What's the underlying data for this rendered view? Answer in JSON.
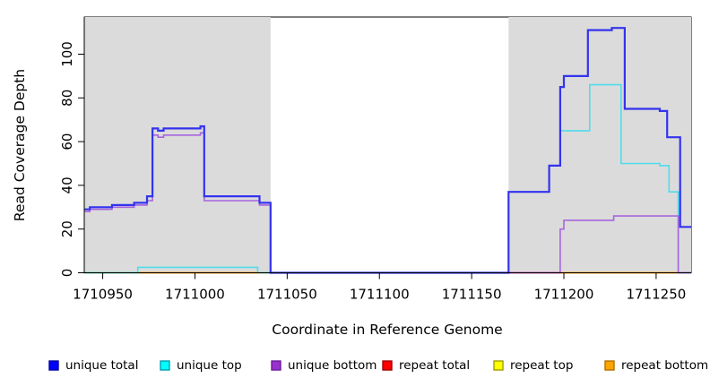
{
  "figure": {
    "background": "#ffffff",
    "panel_shade_color": "#dbdbdb"
  },
  "chart_data": {
    "type": "line",
    "subtype": "step-coverage-plot",
    "title": "",
    "xlabel": "Coordinate in Reference Genome",
    "ylabel": "Read Coverage Depth",
    "xlim": [
      1710940,
      1711269
    ],
    "ylim": [
      0,
      117
    ],
    "x_ticks": [
      1710950,
      1711000,
      1711050,
      1711100,
      1711150,
      1711200,
      1711250
    ],
    "y_ticks": [
      0,
      20,
      40,
      60,
      80,
      100
    ],
    "grid": false,
    "shaded_regions": [
      {
        "x0": 1710940,
        "x1": 1711041,
        "color": "#dbdbdb"
      },
      {
        "x0": 1711170,
        "x1": 1711269,
        "color": "#dbdbdb"
      }
    ],
    "series": [
      {
        "name": "repeat total",
        "line_color": "#de4b7c",
        "lw": 2,
        "segments": [
          [
            [
              1711170,
              0
            ],
            [
              1711269,
              0
            ]
          ]
        ]
      },
      {
        "name": "repeat top",
        "line_color": "#79c779",
        "lw": 2,
        "segments": [
          [
            [
              1710940,
              0
            ],
            [
              1711041,
              0
            ]
          ]
        ]
      },
      {
        "name": "repeat bottom",
        "line_color": "#ffa11c",
        "lw": 2,
        "segments": [
          [
            [
              1710970,
              0
            ],
            [
              1711037,
              0
            ]
          ],
          [
            [
              1711198,
              0
            ],
            [
              1711262,
              0
            ]
          ]
        ]
      },
      {
        "name": "unique top",
        "line_color": "#4fdcec",
        "lw": 1.6,
        "segments": [
          [
            [
              1710940,
              0
            ],
            [
              1710969,
              2.5
            ],
            [
              1711034,
              0
            ],
            [
              1711170,
              37
            ],
            [
              1711192,
              49
            ],
            [
              1711198,
              65
            ],
            [
              1711214,
              86
            ],
            [
              1711231,
              50
            ],
            [
              1711252,
              49
            ],
            [
              1711257,
              37
            ],
            [
              1711262,
              0
            ],
            [
              1711269,
              0
            ]
          ]
        ]
      },
      {
        "name": "unique bottom",
        "line_color": "#a765de",
        "lw": 1.6,
        "segments": [
          [
            [
              1710940,
              28
            ],
            [
              1710943,
              29
            ],
            [
              1710955,
              30
            ],
            [
              1710967,
              31
            ],
            [
              1710974,
              33
            ],
            [
              1710977,
              63
            ],
            [
              1710980,
              62
            ],
            [
              1710983,
              63
            ],
            [
              1711003,
              64
            ],
            [
              1711005,
              33
            ],
            [
              1711035,
              31
            ],
            [
              1711041,
              0
            ],
            [
              1711198,
              20
            ],
            [
              1711200,
              24
            ],
            [
              1711227,
              26
            ],
            [
              1711262,
              0
            ],
            [
              1711269,
              0
            ]
          ]
        ]
      },
      {
        "name": "unique total",
        "line_color": "#3333ee",
        "lw": 2.2,
        "segments": [
          [
            [
              1710940,
              29
            ],
            [
              1710943,
              30
            ],
            [
              1710955,
              31
            ],
            [
              1710967,
              32
            ],
            [
              1710974,
              35
            ],
            [
              1710977,
              66
            ],
            [
              1710980,
              65
            ],
            [
              1710983,
              66
            ],
            [
              1711003,
              67
            ],
            [
              1711005,
              35
            ],
            [
              1711035,
              32
            ],
            [
              1711041,
              0
            ],
            [
              1711170,
              37
            ],
            [
              1711192,
              49
            ],
            [
              1711198,
              85
            ],
            [
              1711200,
              90
            ],
            [
              1711213,
              111
            ],
            [
              1711226,
              112
            ],
            [
              1711233,
              75
            ],
            [
              1711252,
              74
            ],
            [
              1711256,
              62
            ],
            [
              1711263,
              21
            ],
            [
              1711269,
              21
            ]
          ]
        ]
      }
    ],
    "legend": {
      "position": "bottom",
      "items": [
        {
          "label": "unique total",
          "swatch_fill": "#0000ff",
          "swatch_stroke": "#0000a0"
        },
        {
          "label": "unique top",
          "swatch_fill": "#00ffff",
          "swatch_stroke": "#00a0b0"
        },
        {
          "label": "unique bottom",
          "swatch_fill": "#9932cc",
          "swatch_stroke": "#6a1b9a"
        },
        {
          "label": "repeat total",
          "swatch_fill": "#ff0000",
          "swatch_stroke": "#a00000"
        },
        {
          "label": "repeat top",
          "swatch_fill": "#ffff00",
          "swatch_stroke": "#a0a000"
        },
        {
          "label": "repeat bottom",
          "swatch_fill": "#ffa500",
          "swatch_stroke": "#b06f00"
        }
      ]
    }
  }
}
